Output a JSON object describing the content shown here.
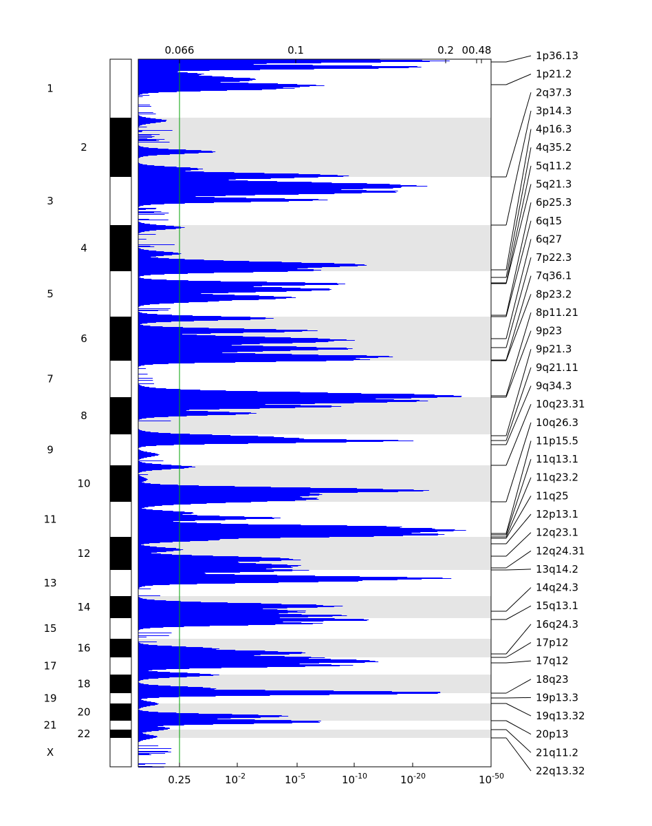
{
  "chart_data": {
    "type": "genome-significance-plot",
    "title": "",
    "colors": {
      "track": "#0000ff",
      "threshold": "#00a000",
      "band_shade": "#e5e5e5",
      "ideogram_dark": "#000000"
    },
    "bottom_axis": {
      "labels": [
        {
          "base": "0.25",
          "exp": ""
        },
        {
          "base": "10",
          "exp": "-2"
        },
        {
          "base": "10",
          "exp": "-5"
        },
        {
          "base": "10",
          "exp": "-10"
        },
        {
          "base": "10",
          "exp": "-20"
        },
        {
          "base": "10",
          "exp": "-50"
        }
      ]
    },
    "top_axis": {
      "q_values": [
        "0.066",
        "0.1",
        "0.2",
        "00.48"
      ]
    },
    "threshold": {
      "q": "0.25",
      "description": "significance threshold line"
    },
    "chromosomes": [
      "1",
      "2",
      "3",
      "4",
      "5",
      "6",
      "7",
      "8",
      "9",
      "10",
      "11",
      "12",
      "13",
      "14",
      "15",
      "16",
      "17",
      "18",
      "19",
      "20",
      "21",
      "22",
      "X"
    ],
    "peaks": [
      "1p36.13",
      "1p21.2",
      "2q37.3",
      "3p14.3",
      "4p16.3",
      "4q35.2",
      "5q11.2",
      "5q21.3",
      "6p25.3",
      "6q15",
      "6q27",
      "7p22.3",
      "7q36.1",
      "8p23.2",
      "8p11.21",
      "9p23",
      "9p21.3",
      "9q21.11",
      "9q34.3",
      "10q23.31",
      "10q26.3",
      "11p15.5",
      "11q13.1",
      "11q23.2",
      "11q25",
      "12p13.1",
      "12q23.1",
      "12q24.31",
      "13q14.2",
      "14q24.3",
      "15q13.1",
      "16q24.3",
      "17p12",
      "17q12",
      "18q23",
      "19p13.3",
      "19q13.32",
      "20p13",
      "21q11.2",
      "22q13.32"
    ]
  }
}
